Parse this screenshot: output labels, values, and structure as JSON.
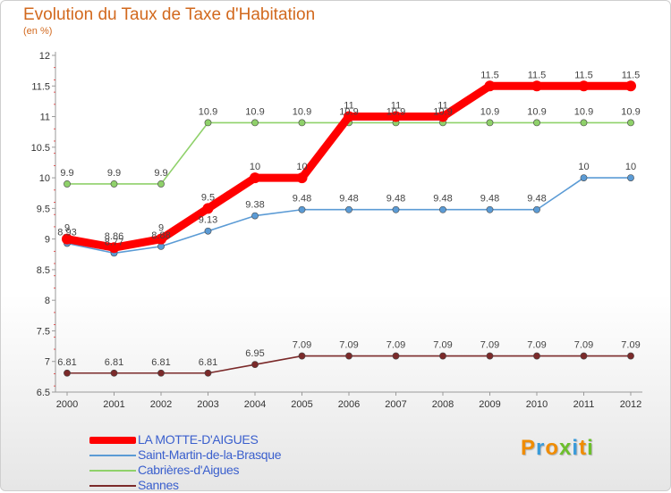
{
  "header": {
    "title": "Evolution du Taux de Taxe d'Habitation",
    "unit": "(en %)"
  },
  "logo": {
    "text": "Proxiti",
    "colors": [
      "#f08c00",
      "#3a9bd9",
      "#f08c00",
      "#6cbf2c",
      "#3a9bd9",
      "#f08c00",
      "#6cbf2c"
    ]
  },
  "chart_data": {
    "type": "line",
    "title": "Evolution du Taux de Taxe d'Habitation",
    "ylabel": "(en %)",
    "xlabel": "",
    "x": [
      "2000",
      "2001",
      "2002",
      "2003",
      "2004",
      "2005",
      "2006",
      "2007",
      "2008",
      "2009",
      "2010",
      "2011",
      "2012"
    ],
    "ylim": [
      6.5,
      12
    ],
    "yticks": [
      "6.5",
      "7",
      "7.5",
      "8",
      "8.5",
      "9",
      "9.5",
      "10",
      "10.5",
      "11",
      "11.5",
      "12"
    ],
    "grid": false,
    "legend_position": "bottom-left",
    "series": [
      {
        "name": "LA MOTTE-D'AIGUES",
        "color": "#ff0000",
        "emphasis": "thick",
        "values": [
          9,
          8.86,
          9,
          9.5,
          10,
          10,
          11,
          11,
          11,
          11.5,
          11.5,
          11.5,
          11.5
        ],
        "labels": [
          "9",
          "8.86",
          "9",
          "9.5",
          "10",
          "10",
          "11",
          "11",
          "11",
          "11.5",
          "11.5",
          "11.5",
          "11.5"
        ]
      },
      {
        "name": "Saint-Martin-de-la-Brasque",
        "color": "#5b9bd5",
        "values": [
          8.93,
          8.77,
          8.88,
          9.13,
          9.38,
          9.48,
          9.48,
          9.48,
          9.48,
          9.48,
          9.48,
          10,
          10
        ],
        "labels": [
          "8.93",
          "8.77",
          "8.88",
          "9.13",
          "9.38",
          "9.48",
          "9.48",
          "9.48",
          "9.48",
          "9.48",
          "9.48",
          "10",
          "10"
        ]
      },
      {
        "name": "Cabrières-d'Aigues",
        "color": "#8fd16a",
        "values": [
          9.9,
          9.9,
          9.9,
          10.9,
          10.9,
          10.9,
          10.9,
          10.9,
          10.9,
          10.9,
          10.9,
          10.9,
          10.9
        ],
        "labels": [
          "9.9",
          "9.9",
          "9.9",
          "10.9",
          "10.9",
          "10.9",
          "10.9",
          "10.9",
          "10.9",
          "10.9",
          "10.9",
          "10.9",
          "10.9"
        ]
      },
      {
        "name": "Sannes",
        "color": "#7b2a2a",
        "values": [
          6.81,
          6.81,
          6.81,
          6.81,
          6.95,
          7.09,
          7.09,
          7.09,
          7.09,
          7.09,
          7.09,
          7.09,
          7.09
        ],
        "labels": [
          "6.81",
          "6.81",
          "6.81",
          "6.81",
          "6.95",
          "7.09",
          "7.09",
          "7.09",
          "7.09",
          "7.09",
          "7.09",
          "7.09",
          "7.09"
        ]
      }
    ]
  }
}
